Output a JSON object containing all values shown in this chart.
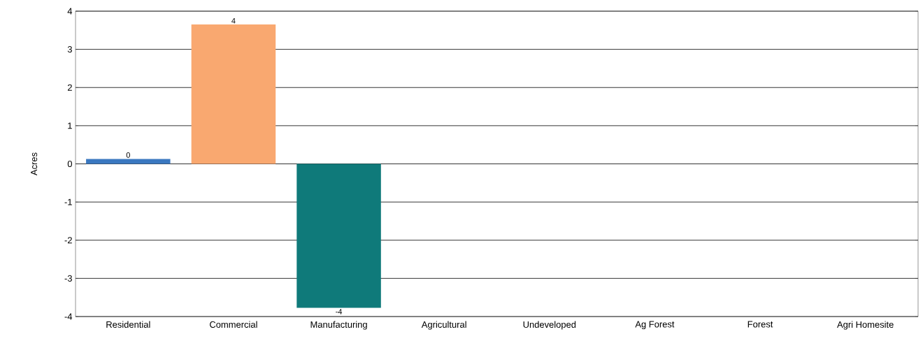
{
  "chart_data": {
    "type": "bar",
    "ylabel": "Acres",
    "categories": [
      "Residential",
      "Commercial",
      "Manufacturing",
      "Agricultural",
      "Undeveloped",
      "Ag Forest",
      "Forest",
      "Agri Homesite"
    ],
    "values": [
      0.13,
      3.65,
      -3.77,
      0,
      0,
      0,
      0,
      0
    ],
    "colors": [
      "#3a78c0",
      "#f9a870",
      "#0f7a7a",
      "#3a78c0",
      "#3a78c0",
      "#3a78c0",
      "#3a78c0",
      "#3a78c0"
    ],
    "value_labels": [
      "0",
      "4",
      "-4",
      null,
      null,
      null,
      null,
      null
    ],
    "ylim": [
      -4,
      4
    ],
    "yticks": [
      -4,
      -3,
      -2,
      -1,
      0,
      1,
      2,
      3,
      4
    ],
    "grid": "y"
  }
}
